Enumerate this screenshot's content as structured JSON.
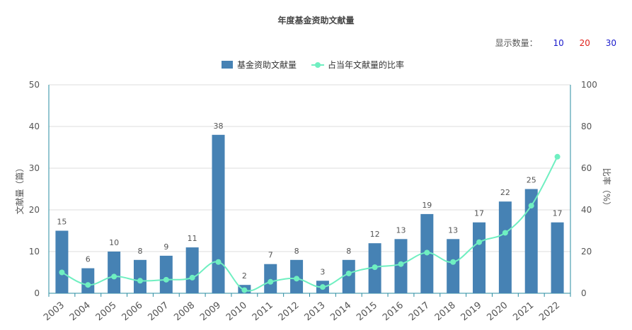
{
  "title": "年度基金资助文献量",
  "count_control": {
    "label": "显示数量：",
    "options": [
      {
        "label": "10",
        "color": "#1a1acc"
      },
      {
        "label": "20",
        "color": "#e0211b"
      },
      {
        "label": "30",
        "color": "#1a1acc"
      }
    ]
  },
  "colors": {
    "bar": "#4682b4",
    "line": "#6fefc1",
    "axis": "#2a8ca0",
    "grid": "#dddddd",
    "text": "#555555"
  },
  "chart_data": {
    "type": "bar",
    "title": "年度基金资助文献量",
    "categories": [
      "2003",
      "2004",
      "2005",
      "2006",
      "2007",
      "2008",
      "2009",
      "2010",
      "2011",
      "2012",
      "2013",
      "2014",
      "2015",
      "2016",
      "2017",
      "2018",
      "2019",
      "2020",
      "2021",
      "2022"
    ],
    "series": [
      {
        "name": "基金资助文献量",
        "type": "bar",
        "axis": "left",
        "values": [
          15,
          6,
          10,
          8,
          9,
          11,
          38,
          2,
          7,
          8,
          3,
          8,
          12,
          13,
          19,
          13,
          17,
          22,
          25,
          17
        ]
      },
      {
        "name": "占当年文献量的比率",
        "type": "line",
        "axis": "right",
        "values": [
          10,
          4,
          8,
          6,
          6.5,
          7.5,
          15,
          1.5,
          5.5,
          7,
          3,
          9.5,
          12.5,
          14,
          19.5,
          15,
          24.5,
          29,
          42,
          65.5
        ]
      }
    ],
    "ylabel": "文献量（篇）",
    "y2label": "比率（%）",
    "ylim": [
      0,
      50
    ],
    "y2lim": [
      0,
      100
    ],
    "yticks": [
      0,
      10,
      20,
      30,
      40,
      50
    ],
    "y2ticks": [
      0,
      20,
      40,
      60,
      80,
      100
    ],
    "grid": true,
    "legend_position": "top-center"
  }
}
